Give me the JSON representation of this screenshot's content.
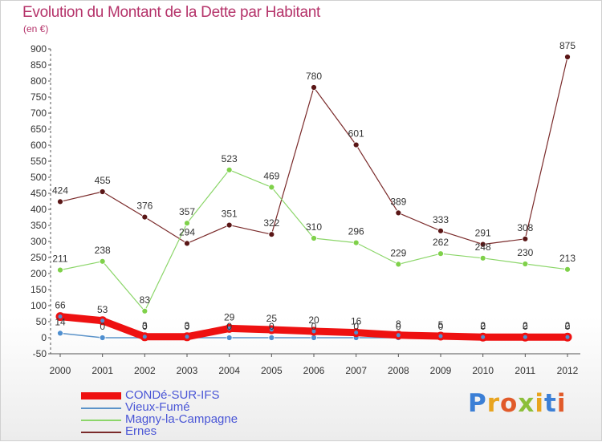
{
  "title": "Evolution du Montant de la Dette par Habitant",
  "subtitle": "(en €)",
  "logo_text": "Proxiti",
  "chart_data": {
    "type": "line",
    "x": [
      "2000",
      "2001",
      "2002",
      "2003",
      "2004",
      "2005",
      "2006",
      "2007",
      "2008",
      "2009",
      "2010",
      "2011",
      "2012"
    ],
    "ylim": [
      -50,
      900
    ],
    "yticks": [
      -50,
      0,
      50,
      100,
      150,
      200,
      250,
      300,
      350,
      400,
      450,
      500,
      550,
      600,
      650,
      700,
      750,
      800,
      850,
      900
    ],
    "grid": false,
    "legend_position": "bottom-left",
    "series": [
      {
        "name": "Ernes",
        "color": "#7a2a2a",
        "values": [
          424,
          455,
          376,
          294,
          351,
          322,
          780,
          601,
          389,
          333,
          291,
          308,
          875
        ]
      },
      {
        "name": "Magny-la-Campagne",
        "color": "#8cd66a",
        "values": [
          211,
          238,
          83,
          357,
          523,
          469,
          310,
          296,
          229,
          262,
          248,
          230,
          213
        ]
      },
      {
        "name": "Vieux-Fumé",
        "color": "#5b93c9",
        "values": [
          14,
          0,
          0,
          0,
          0,
          0,
          0,
          0,
          0,
          0,
          0,
          0,
          0
        ]
      },
      {
        "name": "CONDé-SUR-IFS",
        "color": "#ee1111",
        "values": [
          66,
          53,
          3,
          3,
          29,
          25,
          20,
          16,
          8,
          5,
          2,
          2,
          2
        ]
      }
    ]
  },
  "legend": [
    {
      "label": "CONDé-SUR-IFS",
      "color": "#ee1111",
      "thick": true
    },
    {
      "label": "Vieux-Fumé",
      "color": "#5b93c9",
      "thick": false
    },
    {
      "label": "Magny-la-Campagne",
      "color": "#8cd66a",
      "thick": false
    },
    {
      "label": "Ernes",
      "color": "#7a2a2a",
      "thick": false
    }
  ]
}
